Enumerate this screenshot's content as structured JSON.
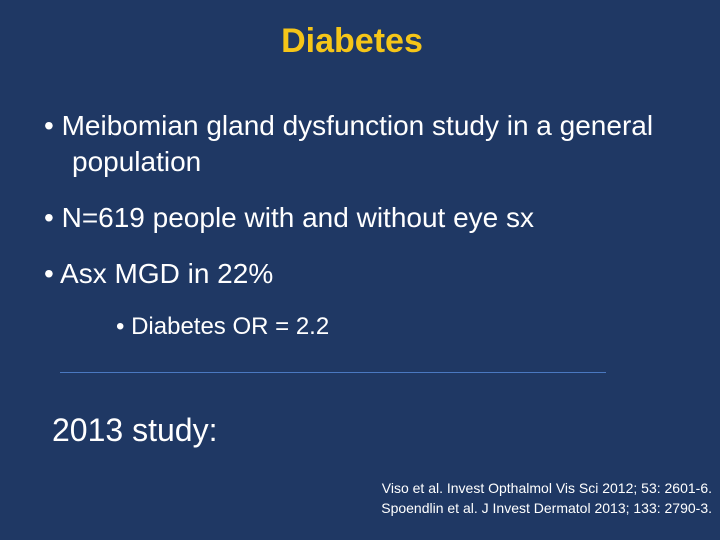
{
  "title": "Diabetes",
  "bullets": [
    "Meibomian gland dysfunction study in a general population",
    "N=619 people with and without eye sx",
    "Asx MGD in 22%"
  ],
  "sub_bullets": [
    "Diabetes OR = 2.2"
  ],
  "note": "2013 study:",
  "references": [
    "Viso et al. Invest Opthalmol Vis Sci 2012; 53: 2601-6.",
    "Spoendlin et al. J Invest Dermatol 2013; 133: 2790-3."
  ]
}
